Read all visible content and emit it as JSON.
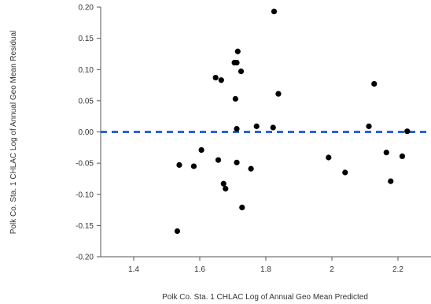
{
  "chart_data": {
    "type": "scatter",
    "title": "",
    "xlabel": "Polk Co. Sta. 1 CHLAC Log of Annual Geo Mean Predicted",
    "ylabel": "Polk Co. Sta. 1 CHLAC Log of Annual Geo Mean Residual",
    "xlim": [
      1.3,
      2.3
    ],
    "ylim": [
      -0.2,
      0.2
    ],
    "x_ticks": [
      1.4,
      1.6,
      1.8,
      2.0,
      2.2
    ],
    "x_tick_labels": [
      "1.4",
      "1.6",
      "1.8",
      "2",
      "2.2"
    ],
    "y_ticks": [
      0.2,
      0.15,
      0.1,
      0.05,
      0.0,
      -0.05,
      -0.1,
      -0.15,
      -0.2
    ],
    "y_tick_labels": [
      "0.20",
      "0.15",
      "0.10",
      "0.05",
      "0.00",
      "-0.05",
      "-0.10",
      "-0.15",
      "-0.20"
    ],
    "grid": false,
    "reference_line": {
      "y": 0.0,
      "style": "dashed",
      "color": "#2a62d9"
    },
    "point_color": "#000000",
    "points": [
      {
        "x": 1.825,
        "y": 0.193
      },
      {
        "x": 1.715,
        "y": 0.129
      },
      {
        "x": 1.705,
        "y": 0.111
      },
      {
        "x": 1.712,
        "y": 0.111
      },
      {
        "x": 1.725,
        "y": 0.097
      },
      {
        "x": 1.648,
        "y": 0.087
      },
      {
        "x": 1.665,
        "y": 0.083
      },
      {
        "x": 1.838,
        "y": 0.061
      },
      {
        "x": 1.708,
        "y": 0.053
      },
      {
        "x": 2.128,
        "y": 0.077
      },
      {
        "x": 1.712,
        "y": 0.005
      },
      {
        "x": 1.772,
        "y": 0.009
      },
      {
        "x": 1.822,
        "y": 0.007
      },
      {
        "x": 2.112,
        "y": 0.009
      },
      {
        "x": 2.228,
        "y": 0.001
      },
      {
        "x": 1.605,
        "y": -0.029
      },
      {
        "x": 1.656,
        "y": -0.045
      },
      {
        "x": 1.712,
        "y": -0.049
      },
      {
        "x": 1.755,
        "y": -0.059
      },
      {
        "x": 1.538,
        "y": -0.053
      },
      {
        "x": 1.582,
        "y": -0.055
      },
      {
        "x": 1.672,
        "y": -0.083
      },
      {
        "x": 1.678,
        "y": -0.091
      },
      {
        "x": 1.728,
        "y": -0.121
      },
      {
        "x": 1.532,
        "y": -0.159
      },
      {
        "x": 1.99,
        "y": -0.041
      },
      {
        "x": 2.04,
        "y": -0.065
      },
      {
        "x": 2.165,
        "y": -0.033
      },
      {
        "x": 2.213,
        "y": -0.039
      },
      {
        "x": 2.178,
        "y": -0.079
      }
    ]
  }
}
